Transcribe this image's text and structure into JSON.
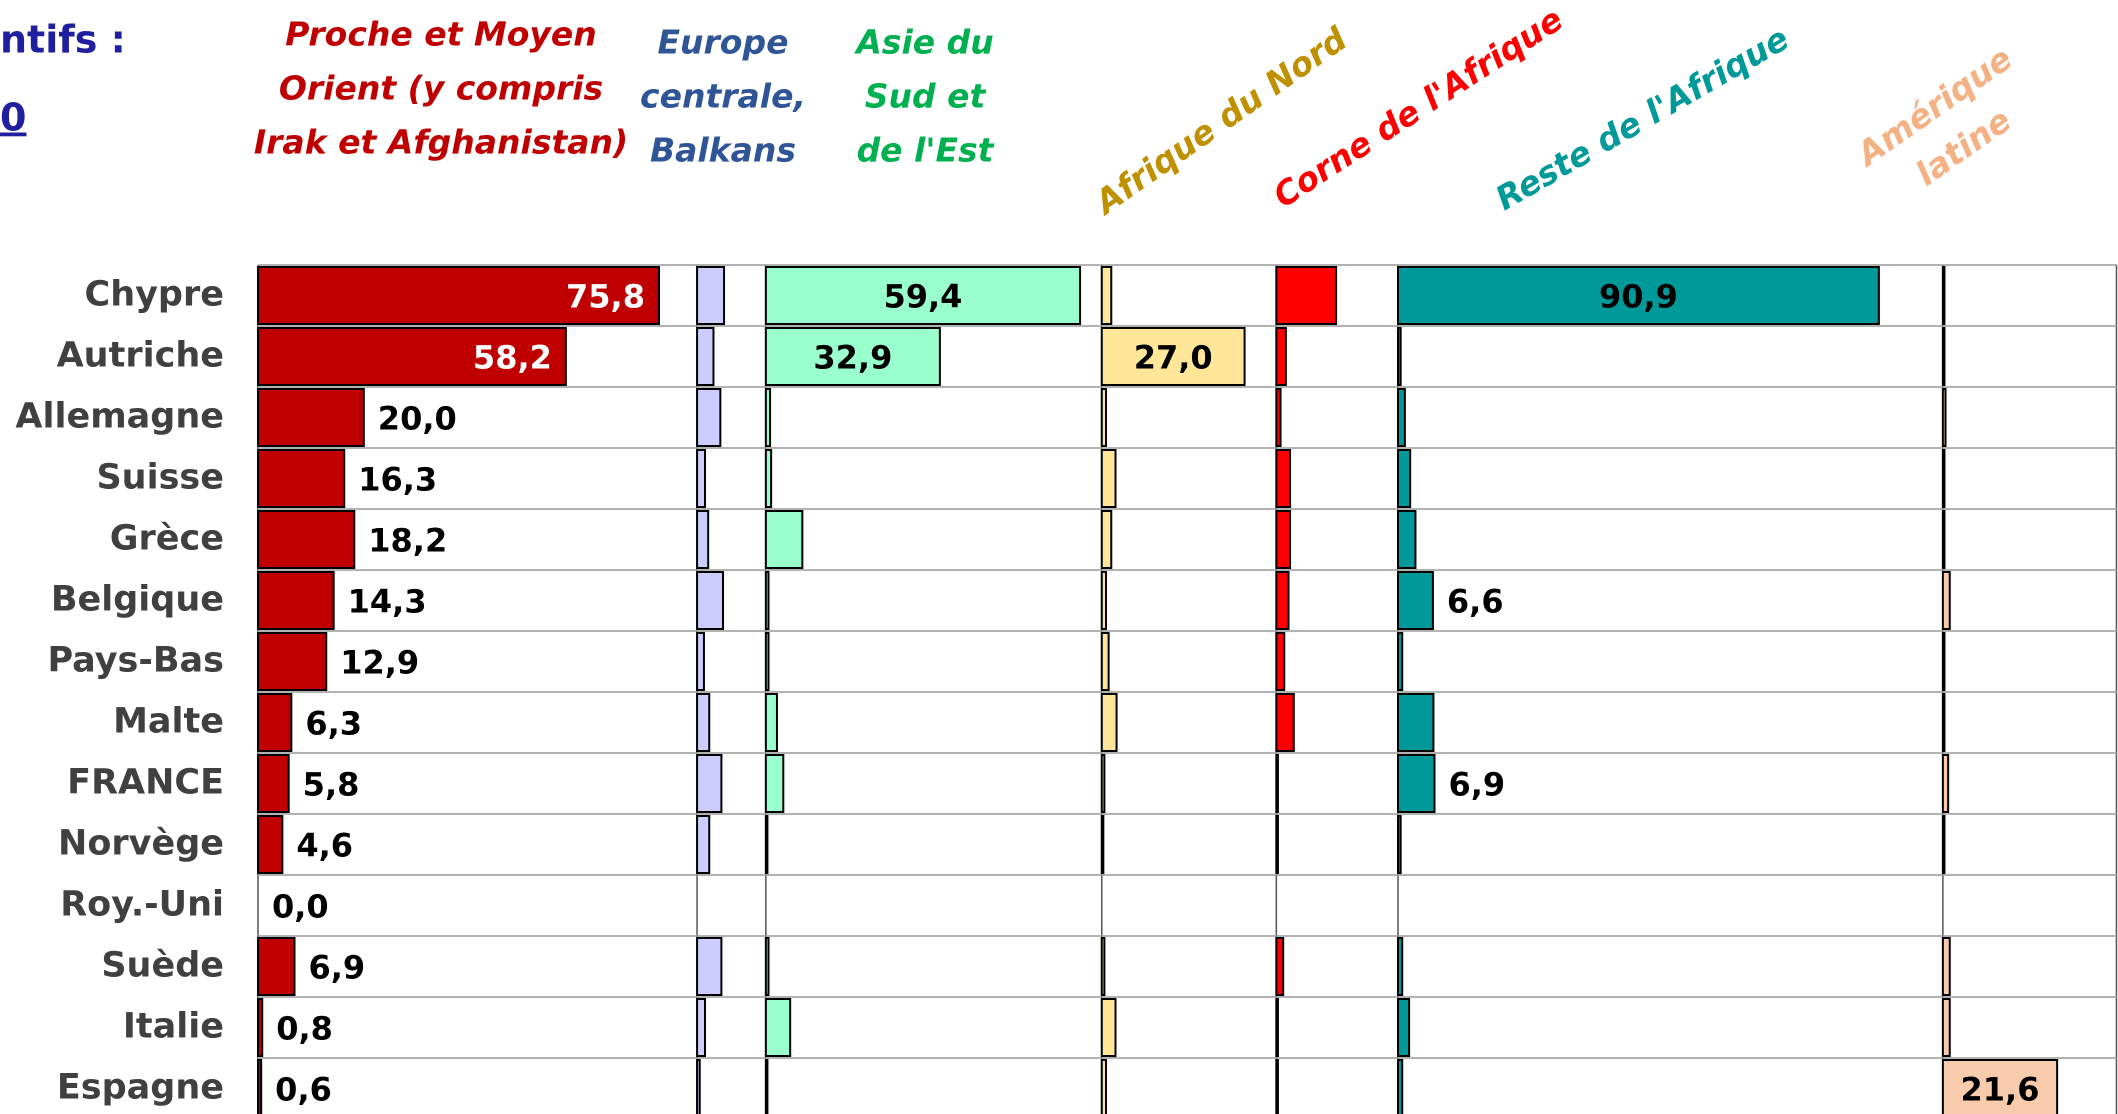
{
  "annotations": [
    "ntifs :",
    "0"
  ],
  "chart_data": {
    "type": "bar",
    "categories": [
      "Chypre",
      "Autriche",
      "Allemagne",
      "Suisse",
      "Grèce",
      "Belgique",
      "Pays-Bas",
      "Malte",
      "FRANCE",
      "Norvège",
      "Roy.-Uni",
      "Suède",
      "Italie",
      "Espagne"
    ],
    "series": [
      {
        "name": [
          "Proche et Moyen",
          "Orient (y compris",
          "Irak et Afghanistan)"
        ],
        "color": "#c00000",
        "label_color": "#c00000",
        "xlim": [
          0,
          83
        ],
        "values": [
          75.8,
          58.2,
          20.0,
          16.3,
          18.2,
          14.3,
          12.9,
          6.3,
          5.8,
          4.6,
          0.0,
          6.9,
          0.8,
          0.6
        ],
        "value_labels": [
          "75,8",
          "58,2",
          "20,0",
          "16,3",
          "18,2",
          "14,3",
          "12,9",
          "6,3",
          "5,8",
          "4,6",
          "0,0",
          "6,9",
          "0,8",
          "0,6"
        ]
      },
      {
        "name": [
          "Europe",
          "centrale,",
          "Balkans"
        ],
        "color": "#ccccff",
        "label_color": "#2f5597",
        "xlim": [
          0,
          13
        ],
        "values": [
          5.1,
          3.1,
          4.4,
          1.5,
          2.1,
          4.9,
          1.3,
          2.3,
          4.6,
          2.3,
          0,
          4.6,
          1.5,
          0.5
        ]
      },
      {
        "name": [
          "Asie du",
          "Sud et",
          "de l'Est"
        ],
        "color": "#99ffcc",
        "label_color": "#00b050",
        "xlim": [
          0,
          63.5
        ],
        "values": [
          59.4,
          32.9,
          0.8,
          1.0,
          6.9,
          0.5,
          0.5,
          2.1,
          3.3,
          0.3,
          0,
          0.5,
          4.6,
          0.3
        ],
        "value_labels": [
          "59,4",
          "32,9",
          null,
          null,
          null,
          null,
          null,
          null,
          null,
          null,
          null,
          null,
          null,
          null
        ]
      },
      {
        "name": [
          "Afrique du Nord"
        ],
        "color": "#ffe699",
        "label_color": "#bf9000",
        "xlim": [
          0,
          33
        ],
        "values": [
          1.8,
          27.0,
          0.8,
          2.6,
          1.8,
          0.8,
          1.3,
          2.8,
          0.5,
          0.3,
          0,
          0.5,
          2.6,
          0.8
        ],
        "value_labels": [
          null,
          "27,0",
          null,
          null,
          null,
          null,
          null,
          null,
          null,
          null,
          null,
          null,
          null,
          null
        ]
      },
      {
        "name": [
          "Corne de l'Afrique"
        ],
        "color": "#ff0000",
        "label_color": "#ff0000",
        "xlim": [
          0,
          23
        ],
        "values": [
          11.3,
          1.8,
          0.8,
          2.6,
          2.6,
          2.3,
          1.5,
          3.3,
          0.3,
          0.3,
          0,
          1.3,
          0.3,
          0.3
        ]
      },
      {
        "name": [
          "Reste de l'Afrique"
        ],
        "color": "#009999",
        "label_color": "#009999",
        "xlim": [
          0,
          103
        ],
        "values": [
          90.9,
          0.5,
          1.3,
          2.3,
          3.3,
          6.6,
          0.8,
          6.7,
          6.9,
          0.5,
          0,
          0.8,
          2.1,
          0.8
        ],
        "value_labels": [
          "90,9",
          null,
          null,
          null,
          null,
          "6,6",
          null,
          null,
          "6,9",
          null,
          null,
          null,
          null,
          null
        ]
      },
      {
        "name": [
          "Amérique",
          "latine"
        ],
        "color": "#f8cbad",
        "label_color": "#f4b183",
        "xlim": [
          0,
          33
        ],
        "values": [
          0.3,
          0.3,
          0.5,
          0.3,
          0.3,
          1.3,
          0.3,
          0.3,
          1.0,
          0.3,
          0,
          1.3,
          1.3,
          21.6
        ],
        "value_labels": [
          null,
          null,
          null,
          null,
          null,
          null,
          null,
          null,
          null,
          null,
          null,
          null,
          null,
          "21,6"
        ]
      }
    ]
  }
}
